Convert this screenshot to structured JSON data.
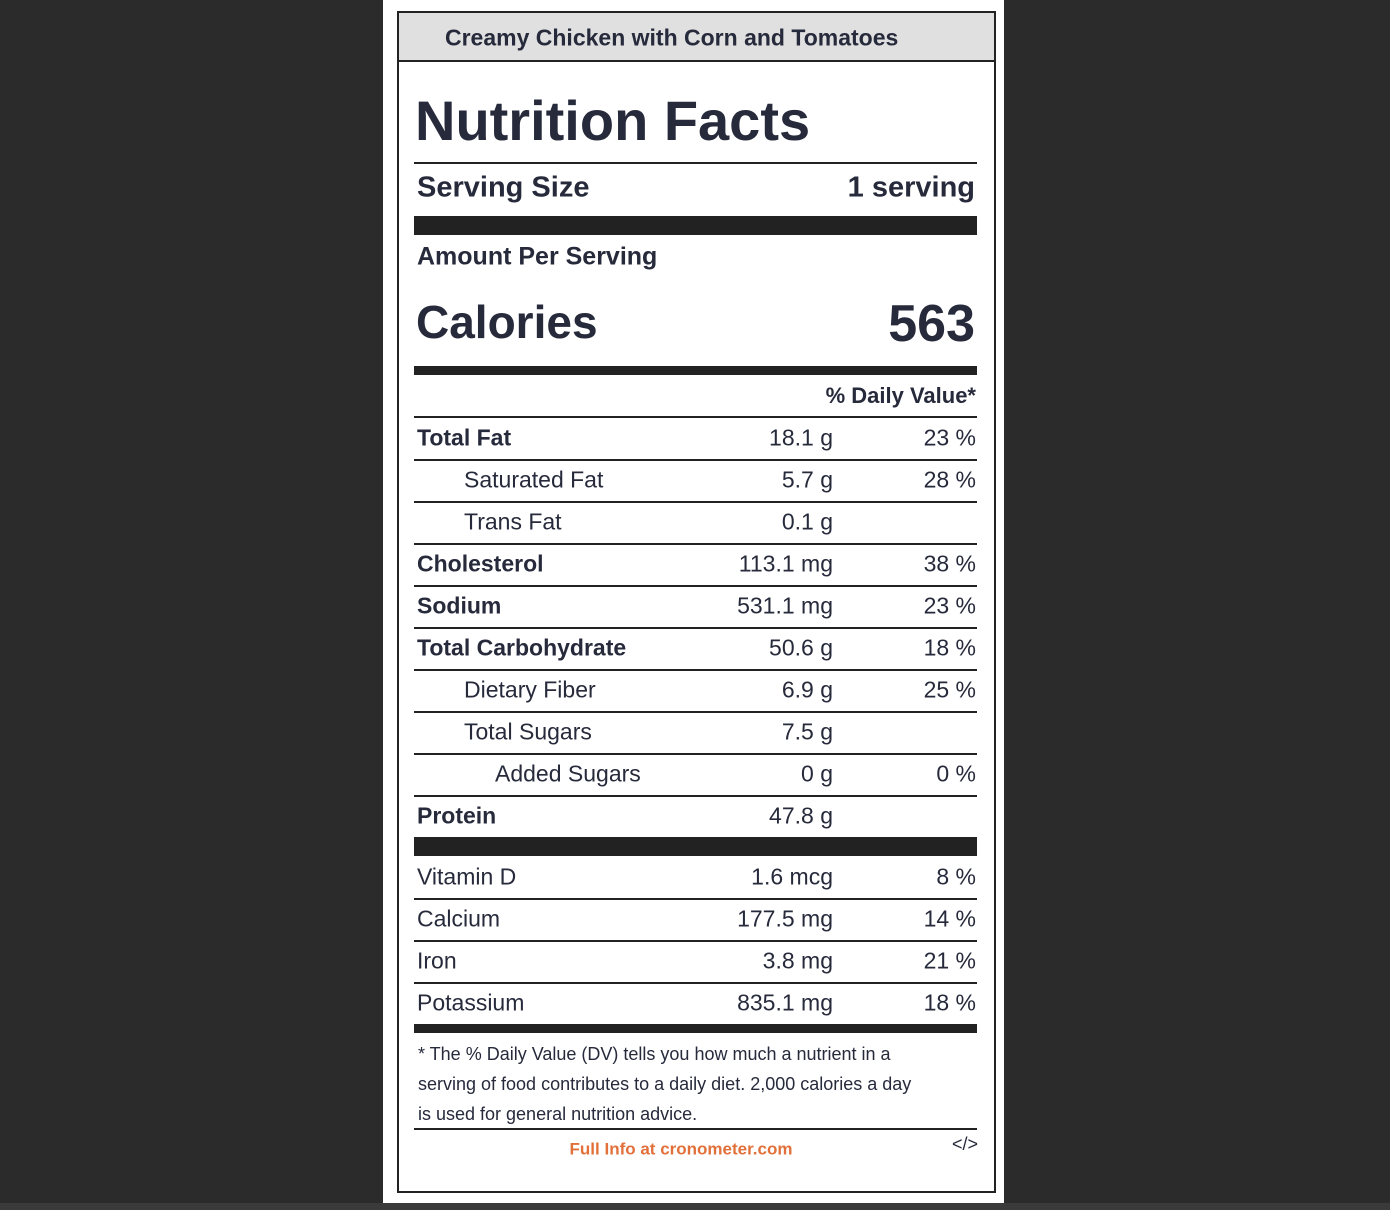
{
  "header": {
    "title": "Creamy Chicken with Corn and Tomatoes"
  },
  "label": {
    "heading": "Nutrition Facts",
    "serving_size": {
      "label": "Serving Size",
      "value": "1 serving"
    },
    "amount_per_serving": "Amount Per Serving",
    "calories": {
      "label": "Calories",
      "value": "563"
    },
    "daily_value_header": "% Daily Value*",
    "nutrients": [
      {
        "name": "Total Fat",
        "amount": "18.1 g",
        "dv": "23 %",
        "sub": [
          {
            "name": "Saturated Fat",
            "amount": "5.7 g",
            "dv": "28 %"
          },
          {
            "name": "Trans Fat",
            "amount": "0.1 g"
          }
        ]
      },
      {
        "name": "Cholesterol",
        "amount": "113.1 mg",
        "dv": "38 %"
      },
      {
        "name": "Sodium",
        "amount": "531.1 mg",
        "dv": "23 %"
      },
      {
        "name": "Total Carbohydrate",
        "amount": "50.6 g",
        "dv": "18 %",
        "sub": [
          {
            "name": "Dietary Fiber",
            "amount": "6.9 g",
            "dv": "25 %"
          },
          {
            "name": "Total Sugars",
            "amount": "7.5 g",
            "sub": [
              {
                "name": "Added Sugars",
                "amount": "0 g",
                "dv": "0 %"
              }
            ]
          }
        ]
      },
      {
        "name": "Protein",
        "amount": "47.8 g"
      }
    ],
    "vitamins": [
      {
        "name": "Vitamin D",
        "amount": "1.6 mcg",
        "dv": "8 %"
      },
      {
        "name": "Calcium",
        "amount": "177.5 mg",
        "dv": "14 %"
      },
      {
        "name": "Iron",
        "amount": "3.8 mg",
        "dv": "21 %"
      },
      {
        "name": "Potassium",
        "amount": "835.1 mg",
        "dv": "18 %"
      }
    ],
    "footnote": [
      "* The % Daily Value (DV) tells you how much a nutrient in a",
      "serving of food contributes to a daily diet. 2,000 calories a day",
      "is used for general nutrition advice."
    ],
    "link": "Full Info at cronometer.com",
    "embed": "</>"
  }
}
